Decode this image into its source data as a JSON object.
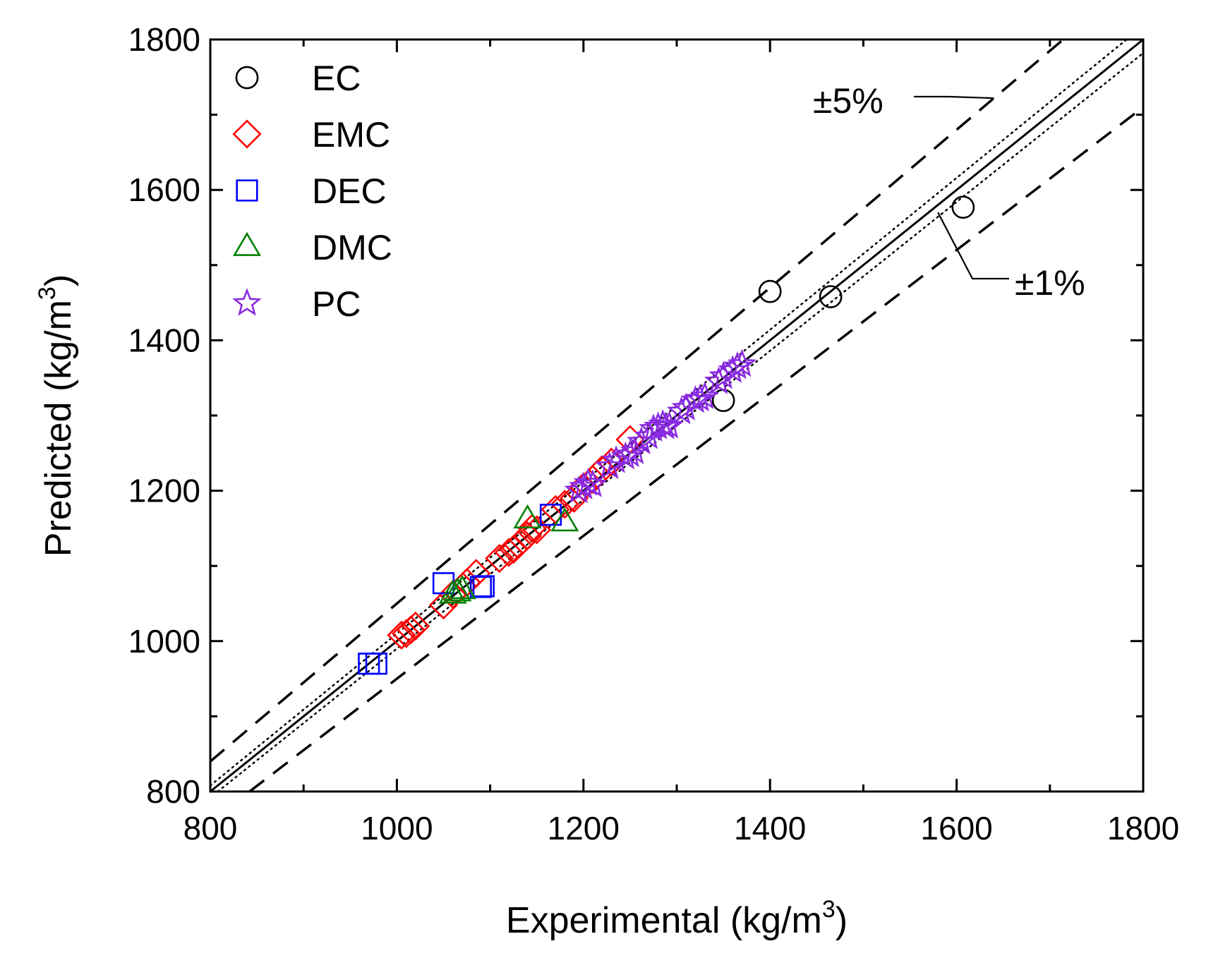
{
  "chart_data": {
    "type": "scatter",
    "xlabel": "Experimental (kg/m",
    "ylabel": "Predicted (kg/m",
    "unit_superscript": "3",
    "unit_close": ")",
    "xlim": [
      800,
      1800
    ],
    "ylim": [
      800,
      1800
    ],
    "xticks": [
      "800",
      "1000",
      "1200",
      "1400",
      "1600",
      "1800"
    ],
    "yticks": [
      "800",
      "1000",
      "1200",
      "1400",
      "1600",
      "1800"
    ],
    "grid": false,
    "legend_position": "top-left",
    "series": [
      {
        "name": "EC",
        "marker": "circle",
        "color": "#000000",
        "points": [
          [
            1400,
            1465
          ],
          [
            1465,
            1458
          ],
          [
            1350,
            1320
          ],
          [
            1607,
            1577
          ]
        ]
      },
      {
        "name": "EMC",
        "marker": "diamond",
        "color": "#ff0000",
        "points": [
          [
            1005,
            1008
          ],
          [
            1010,
            1010
          ],
          [
            1015,
            1015
          ],
          [
            1020,
            1020
          ],
          [
            1050,
            1048
          ],
          [
            1060,
            1062
          ],
          [
            1075,
            1078
          ],
          [
            1085,
            1090
          ],
          [
            1110,
            1110
          ],
          [
            1120,
            1118
          ],
          [
            1125,
            1122
          ],
          [
            1130,
            1128
          ],
          [
            1140,
            1140
          ],
          [
            1145,
            1150
          ],
          [
            1150,
            1148
          ],
          [
            1170,
            1175
          ],
          [
            1180,
            1182
          ],
          [
            1190,
            1190
          ],
          [
            1200,
            1205
          ],
          [
            1210,
            1215
          ],
          [
            1220,
            1228
          ],
          [
            1230,
            1238
          ],
          [
            1250,
            1268
          ]
        ]
      },
      {
        "name": "DEC",
        "marker": "square",
        "color": "#0000ff",
        "points": [
          [
            970,
            970
          ],
          [
            978,
            970
          ],
          [
            1050,
            1077
          ],
          [
            1090,
            1072
          ],
          [
            1093,
            1073
          ],
          [
            1165,
            1168
          ]
        ]
      },
      {
        "name": "DMC",
        "marker": "triangle",
        "color": "#008000",
        "points": [
          [
            1060,
            1062
          ],
          [
            1065,
            1065
          ],
          [
            1070,
            1068
          ],
          [
            1140,
            1162
          ],
          [
            1180,
            1158
          ]
        ]
      },
      {
        "name": "PC",
        "marker": "star",
        "color": "#8a2be2",
        "points": [
          [
            1195,
            1200
          ],
          [
            1200,
            1205
          ],
          [
            1205,
            1210
          ],
          [
            1210,
            1208
          ],
          [
            1228,
            1232
          ],
          [
            1235,
            1240
          ],
          [
            1245,
            1245
          ],
          [
            1250,
            1248
          ],
          [
            1255,
            1252
          ],
          [
            1262,
            1265
          ],
          [
            1270,
            1272
          ],
          [
            1275,
            1282
          ],
          [
            1280,
            1285
          ],
          [
            1285,
            1288
          ],
          [
            1288,
            1285
          ],
          [
            1292,
            1286
          ],
          [
            1305,
            1305
          ],
          [
            1310,
            1310
          ],
          [
            1320,
            1320
          ],
          [
            1325,
            1322
          ],
          [
            1330,
            1325
          ],
          [
            1345,
            1345
          ],
          [
            1350,
            1352
          ],
          [
            1360,
            1360
          ],
          [
            1365,
            1365
          ],
          [
            1370,
            1368
          ]
        ]
      }
    ],
    "reference_lines": [
      {
        "name": "identity",
        "style": "solid",
        "slope": 1.0
      },
      {
        "name": "plus-1-percent",
        "style": "dotted",
        "slope": 1.01
      },
      {
        "name": "minus-1-percent",
        "style": "dotted",
        "slope": 0.99
      },
      {
        "name": "plus-5-percent",
        "style": "dashed",
        "slope": 1.05
      },
      {
        "name": "minus-5-percent",
        "style": "dashed",
        "slope": 0.95
      }
    ],
    "annotations": [
      {
        "text": "±5%",
        "points_to": [
          1640,
          1722
        ]
      },
      {
        "text": "±1%",
        "points_to": [
          1580,
          1570
        ]
      }
    ]
  }
}
